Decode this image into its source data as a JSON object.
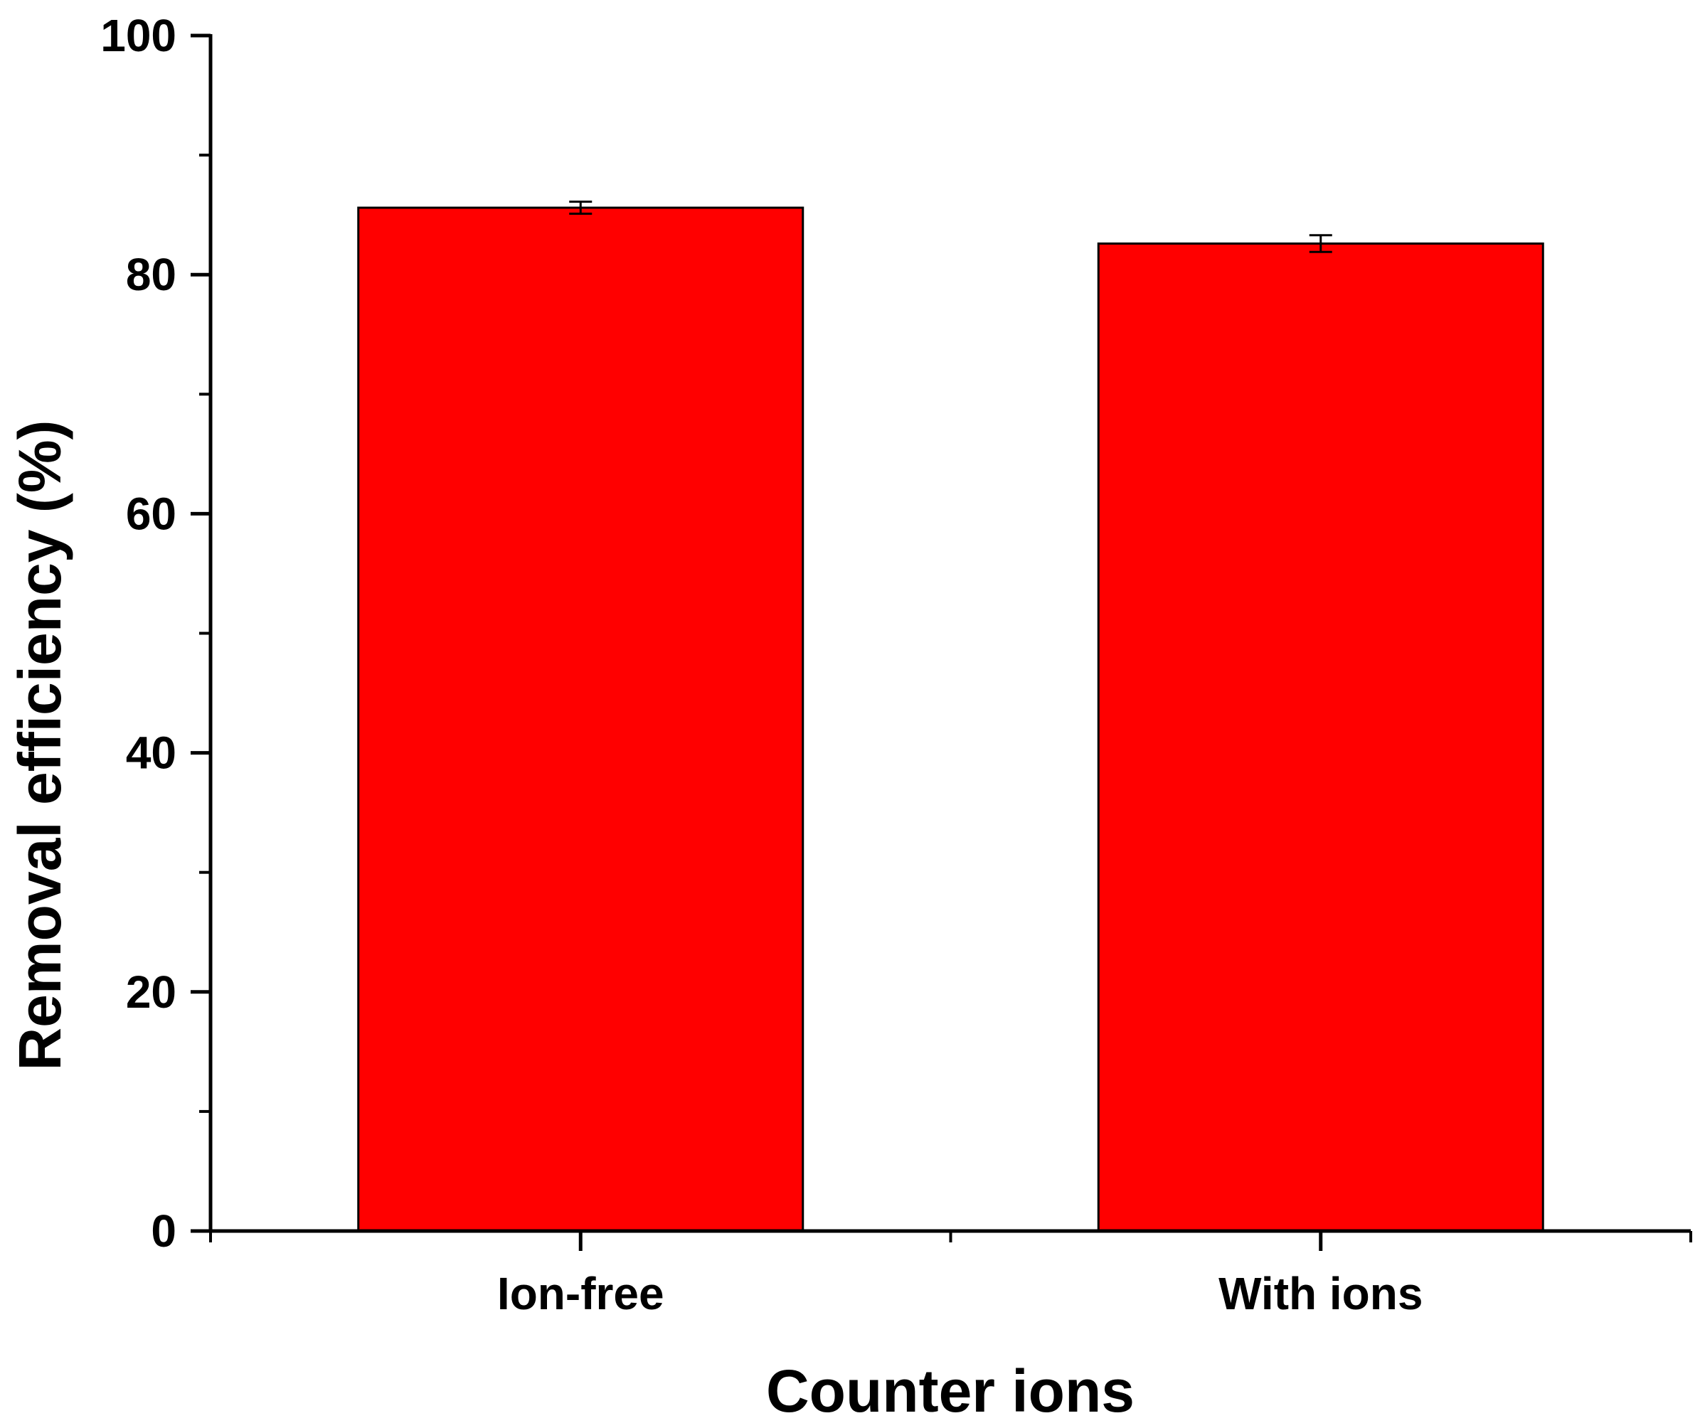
{
  "chart_data": {
    "type": "bar",
    "categories": [
      "Ion-free",
      "With ions"
    ],
    "values": [
      85.6,
      82.6
    ],
    "errors": [
      0.5,
      0.7
    ],
    "xlabel": "Counter ions",
    "ylabel": "Removal efficiency (%)",
    "ylim": [
      0,
      100
    ],
    "yticks": [
      0,
      20,
      40,
      60,
      80,
      100
    ],
    "y_minor_step": 10,
    "grid": false,
    "legend": "none",
    "bar_color": "#ff0000",
    "bar_edge_color": "#000000"
  }
}
